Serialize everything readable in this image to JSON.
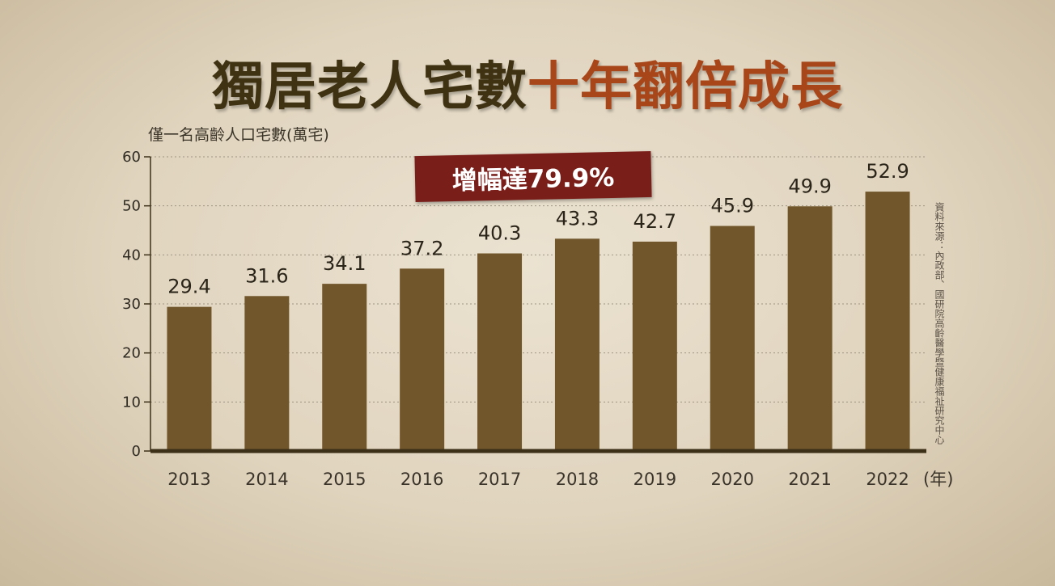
{
  "title": {
    "part1": "獨居老人宅數",
    "part2": "十年翻倍成長"
  },
  "badge": "增幅達79.9%",
  "source": "資料來源：內政部、國研院高齡醫學暨健康福祉研究中心",
  "colors": {
    "bar": "#71562b",
    "axis": "#3d3019",
    "title_dark": "#3f3212",
    "title_accent": "#a8461a",
    "badge": "#7a1e1a"
  },
  "chart_data": {
    "type": "bar",
    "title": "獨居老人宅數十年翻倍成長",
    "ylabel": "僅一名高齡人口宅數(萬宅)",
    "xunit": "(年)",
    "categories": [
      "2013",
      "2014",
      "2015",
      "2016",
      "2017",
      "2018",
      "2019",
      "2020",
      "2021",
      "2022"
    ],
    "values": [
      29.4,
      31.6,
      34.1,
      37.2,
      40.3,
      43.3,
      42.7,
      45.9,
      49.9,
      52.9
    ],
    "ylim": [
      0,
      60
    ],
    "yticks": [
      0,
      10,
      20,
      30,
      40,
      50,
      60
    ],
    "grid": true
  }
}
